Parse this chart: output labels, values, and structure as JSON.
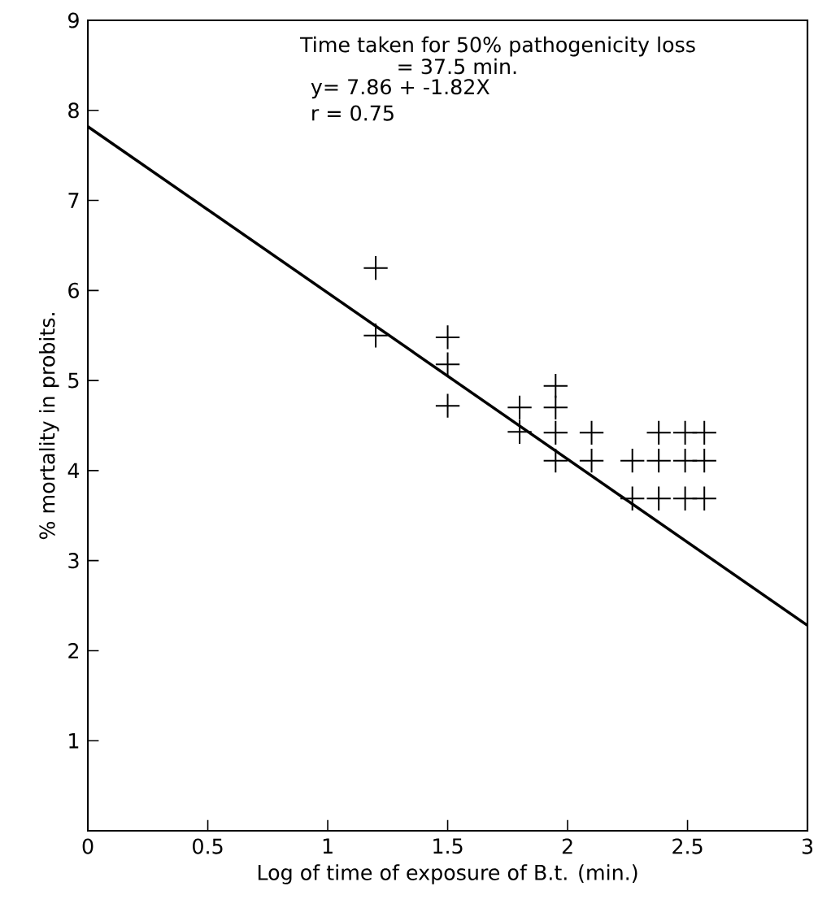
{
  "chart_data": {
    "type": "scatter",
    "xlabel": "Log of time of exposure of B.t. (min.)",
    "ylabel": "% mortality in probits.",
    "annotations": [
      "Time taken for 50% pathogenicity loss",
      "= 37.5 min.",
      "y= 7.86 + -1.82X",
      "r = 0.75"
    ],
    "xlim": [
      0,
      3
    ],
    "ylim": [
      0,
      9
    ],
    "xticks": [
      0,
      0.5,
      1,
      1.5,
      2,
      2.5,
      3
    ],
    "yticks": [
      1,
      2,
      3,
      4,
      5,
      6,
      7,
      8,
      9
    ],
    "grid": false,
    "marker": "cross",
    "series": [
      {
        "color": "#000000",
        "x": [
          1.2,
          1.2,
          1.5,
          1.5,
          1.5,
          1.8,
          1.8,
          1.95,
          1.95,
          1.95,
          1.95,
          2.1,
          2.1,
          2.27,
          2.27,
          2.38,
          2.38,
          2.38,
          2.49,
          2.49,
          2.49,
          2.57,
          2.57,
          2.57
        ],
        "values": [
          6.25,
          5.5,
          5.48,
          5.18,
          4.72,
          4.7,
          4.43,
          4.94,
          4.7,
          4.42,
          4.11,
          4.42,
          4.11,
          4.11,
          3.69,
          4.42,
          4.11,
          3.69,
          4.42,
          4.11,
          3.69,
          4.42,
          4.11,
          3.69
        ]
      },
      {
        "type": "line",
        "color": "#000000",
        "marker": "none",
        "line_style": "solid",
        "x": [
          0,
          3
        ],
        "values": [
          7.82,
          2.28
        ]
      }
    ]
  }
}
